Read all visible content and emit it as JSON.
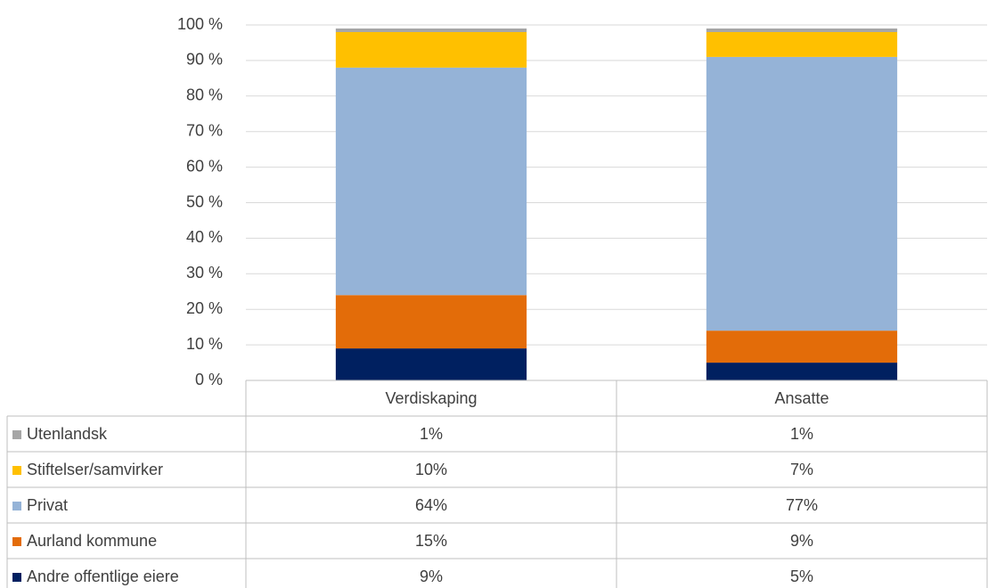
{
  "chart_data": {
    "type": "bar",
    "stacked": true,
    "categories": [
      "Verdiskaping",
      "Ansatte"
    ],
    "series": [
      {
        "name": "Andre offentlige eiere",
        "color": "#002060",
        "values": [
          9,
          5
        ],
        "value_labels": [
          "9%",
          "5%"
        ]
      },
      {
        "name": "Aurland kommune",
        "color": "#e36c09",
        "values": [
          15,
          9
        ],
        "value_labels": [
          "15%",
          "9%"
        ]
      },
      {
        "name": "Privat",
        "color": "#95b3d7",
        "values": [
          64,
          77
        ],
        "value_labels": [
          "64%",
          "77%"
        ]
      },
      {
        "name": "Stiftelser/samvirker",
        "color": "#ffc000",
        "values": [
          10,
          7
        ],
        "value_labels": [
          "10%",
          "7%"
        ]
      },
      {
        "name": "Utenlandsk",
        "color": "#a6a6a6",
        "values": [
          1,
          1
        ],
        "value_labels": [
          "1%",
          "1%"
        ]
      }
    ],
    "ylim": [
      0,
      100
    ],
    "yticks": [
      {
        "value": 0,
        "label": "0 %"
      },
      {
        "value": 10,
        "label": "10 %"
      },
      {
        "value": 20,
        "label": "20 %"
      },
      {
        "value": 30,
        "label": "30 %"
      },
      {
        "value": 40,
        "label": "40 %"
      },
      {
        "value": 50,
        "label": "50 %"
      },
      {
        "value": 60,
        "label": "60 %"
      },
      {
        "value": 70,
        "label": "70 %"
      },
      {
        "value": 80,
        "label": "80 %"
      },
      {
        "value": 90,
        "label": "90 %"
      },
      {
        "value": 100,
        "label": "100 %"
      }
    ],
    "grid": true,
    "legend": "table"
  }
}
